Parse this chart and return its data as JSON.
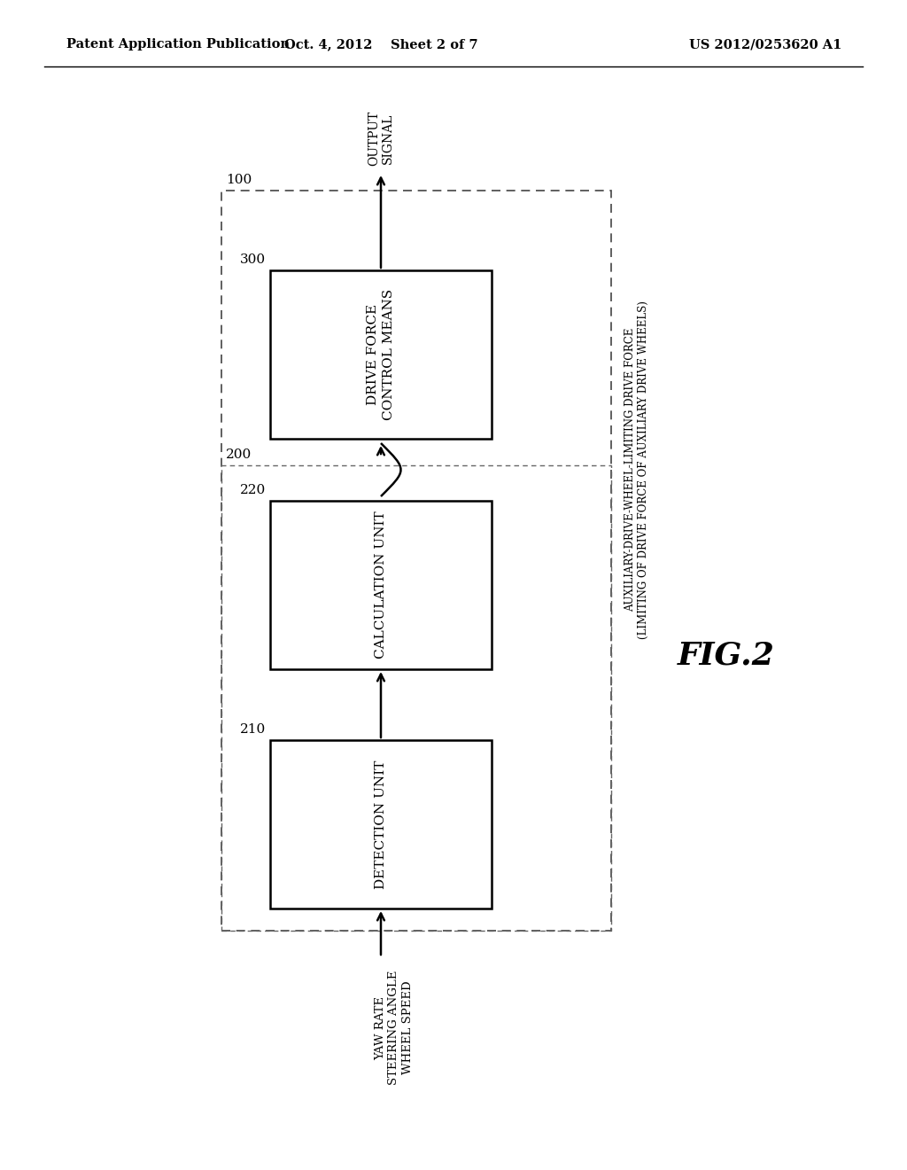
{
  "header_left": "Patent Application Publication",
  "header_center": "Oct. 4, 2012    Sheet 2 of 7",
  "header_right": "US 2012/0253620 A1",
  "fig_label": "FIG.2",
  "background_color": "#ffffff"
}
